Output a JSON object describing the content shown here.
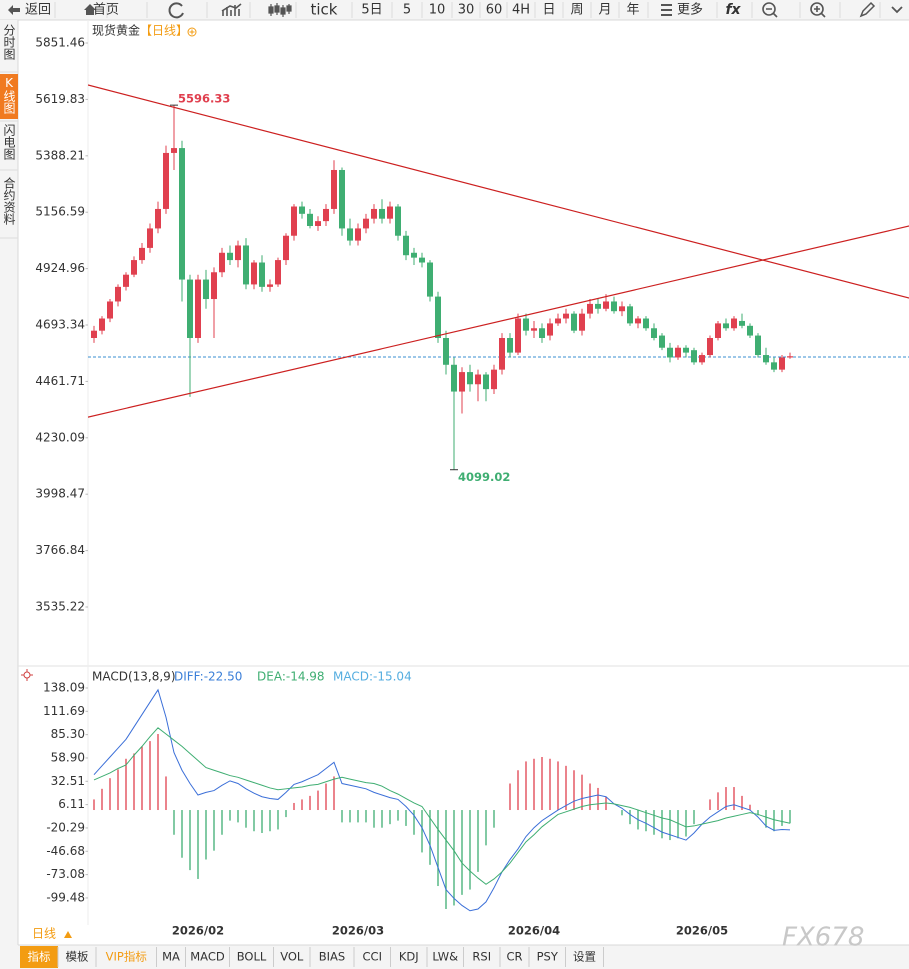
{
  "toolbar": [
    "返回",
    "首页",
    "tick",
    "5日",
    "5",
    "10",
    "30",
    "60",
    "4H",
    "日",
    "周",
    "月",
    "年",
    "更多",
    "fx"
  ],
  "side_tabs": [
    "分时图",
    "K线图",
    "闪电图",
    "合约资料"
  ],
  "period_selector": "日线",
  "bottom_tabs": [
    "指标",
    "模板",
    "VIP指标",
    "MA",
    "MACD",
    "BOLL",
    "VOL",
    "BIAS",
    "CCI",
    "KDJ",
    "LW&",
    "RSI",
    "CR",
    "PSY",
    "设置"
  ],
  "watermark": "FX678",
  "chart_data": [
    {
      "type": "candlestick",
      "title": "现货黄金",
      "period_label": "【日线】",
      "up_color": "#e0404f",
      "down_color": "#3fae72",
      "categories": [
        null,
        null,
        null,
        null,
        null,
        null,
        null,
        null,
        null,
        null,
        null,
        null,
        null,
        "2026/02",
        null,
        null,
        null,
        null,
        null,
        null,
        null,
        null,
        null,
        null,
        null,
        null,
        null,
        null,
        null,
        null,
        null,
        null,
        null,
        "2026/03",
        null,
        null,
        null,
        null,
        null,
        null,
        null,
        null,
        null,
        null,
        null,
        null,
        null,
        null,
        null,
        null,
        null,
        null,
        null,
        null,
        null,
        "2026/04",
        null,
        null,
        null,
        null,
        null,
        null,
        null,
        null,
        null,
        null,
        null,
        null,
        null,
        null,
        null,
        null,
        null,
        null,
        null,
        null,
        "2026/05",
        null,
        null,
        null,
        null,
        null,
        null,
        null,
        null,
        null,
        null,
        null
      ],
      "open": [
        4640,
        4670,
        4720,
        4790,
        4850,
        4900,
        4960,
        5010,
        5090,
        5170,
        5400,
        5420,
        4880,
        4640,
        4880,
        4800,
        4910,
        4990,
        4960,
        5020,
        4860,
        4950,
        4850,
        4860,
        4960,
        5060,
        5180,
        5150,
        5100,
        5120,
        5170,
        5330,
        5090,
        5040,
        5090,
        5130,
        5170,
        5130,
        5180,
        5060,
        4990,
        4970,
        4950,
        4810,
        4640,
        4530,
        4420,
        4500,
        4450,
        4490,
        4430,
        4510,
        4640,
        4580,
        4720,
        4670,
        4680,
        4650,
        4700,
        4720,
        4740,
        4670,
        4740,
        4780,
        4760,
        4790,
        4750,
        4770,
        4700,
        4720,
        4680,
        4650,
        4600,
        4560,
        4600,
        4590,
        4540,
        4570,
        4640,
        4700,
        4680,
        4710,
        4690,
        4650,
        4570,
        4540,
        4510,
        4560
      ],
      "high": [
        4690,
        4730,
        4800,
        4860,
        4910,
        4975,
        5030,
        5110,
        5200,
        5430,
        5596.33,
        5450,
        4900,
        4900,
        4920,
        4930,
        5010,
        5020,
        5040,
        5050,
        4960,
        4980,
        4880,
        4970,
        5070,
        5190,
        5200,
        5170,
        5140,
        5190,
        5370,
        5340,
        5130,
        5110,
        5150,
        5190,
        5210,
        5200,
        5190,
        5080,
        5010,
        4990,
        4960,
        4830,
        4670,
        4560,
        4520,
        4530,
        4510,
        4500,
        4530,
        4660,
        4660,
        4740,
        4740,
        4710,
        4700,
        4720,
        4740,
        4760,
        4750,
        4760,
        4800,
        4800,
        4820,
        4810,
        4790,
        4780,
        4730,
        4730,
        4700,
        4660,
        4620,
        4610,
        4610,
        4600,
        4580,
        4650,
        4710,
        4720,
        4730,
        4740,
        4700,
        4660,
        4600,
        4560,
        4570,
        4580
      ],
      "low": [
        4620,
        4655,
        4705,
        4770,
        4835,
        4890,
        4945,
        4990,
        5070,
        5150,
        5330,
        4790,
        4398,
        4620,
        4760,
        4640,
        4890,
        4940,
        4930,
        4840,
        4840,
        4830,
        4830,
        4850,
        4940,
        5040,
        5130,
        5090,
        5080,
        5100,
        5150,
        5060,
        5020,
        5020,
        5070,
        5110,
        5110,
        5110,
        5040,
        4960,
        4940,
        4930,
        4790,
        4620,
        4490,
        4099.02,
        4330,
        4420,
        4380,
        4380,
        4410,
        4490,
        4560,
        4570,
        4650,
        4640,
        4620,
        4630,
        4690,
        4700,
        4660,
        4650,
        4720,
        4740,
        4750,
        4740,
        4730,
        4690,
        4680,
        4670,
        4630,
        4590,
        4540,
        4550,
        4560,
        4530,
        4530,
        4560,
        4630,
        4670,
        4670,
        4680,
        4640,
        4560,
        4530,
        4500,
        4500,
        4555
      ],
      "close": [
        4670,
        4720,
        4790,
        4850,
        4900,
        4960,
        5010,
        5090,
        5170,
        5400,
        5420,
        4880,
        4640,
        4880,
        4800,
        4910,
        4990,
        4960,
        5020,
        4860,
        4950,
        4850,
        4860,
        4960,
        5060,
        5180,
        5150,
        5100,
        5120,
        5170,
        5330,
        5090,
        5040,
        5090,
        5130,
        5170,
        5130,
        5180,
        5060,
        4980,
        4970,
        4950,
        4810,
        4640,
        4530,
        4420,
        4500,
        4450,
        4490,
        4430,
        4510,
        4640,
        4580,
        4720,
        4670,
        4680,
        4640,
        4700,
        4720,
        4740,
        4670,
        4740,
        4780,
        4760,
        4790,
        4750,
        4770,
        4700,
        4720,
        4680,
        4640,
        4600,
        4560,
        4600,
        4580,
        4540,
        4570,
        4640,
        4700,
        4680,
        4720,
        4690,
        4650,
        4570,
        4540,
        4510,
        4560,
        4565
      ],
      "ylim": [
        3297,
        5946
      ],
      "yticks": [
        5851.46,
        5619.83,
        5388.21,
        5156.59,
        4924.96,
        4693.34,
        4461.71,
        4230.09,
        3998.47,
        3766.84,
        3535.22
      ],
      "annotations": [
        {
          "label": "5596.33",
          "x": 10,
          "value": 5596.33,
          "color": "#e0404f"
        },
        {
          "label": "4099.02",
          "x": 45,
          "value": 4099.02,
          "color": "#3fae72"
        }
      ],
      "trend_lines": [
        {
          "color": "#cc2020",
          "x": [
            -0.75,
            101.9
          ],
          "values": [
            5679,
            4804
          ]
        },
        {
          "color": "#cc2020",
          "x": [
            -0.75,
            101.9
          ],
          "values": [
            4315,
            5100
          ]
        }
      ],
      "reference_line": {
        "value": 4562,
        "color": "#3a8fd0"
      }
    },
    {
      "type": "macd",
      "title": "MACD(13,8,9)",
      "readouts": [
        {
          "text": "DIFF:-22.50",
          "color": "#3b7fd8"
        },
        {
          "text": "DEA:-14.98",
          "color": "#3fae72"
        },
        {
          "text": "MACD:-15.04",
          "color": "#56aee0"
        }
      ],
      "diff_color": "#3b6fd8",
      "dea_color": "#3fae72",
      "up_color": "#e0404f",
      "down_color": "#3fae72",
      "diff": [
        40,
        50,
        60,
        70,
        80,
        94,
        108,
        122,
        136,
        105,
        65,
        45,
        30,
        17,
        20,
        22,
        28,
        33,
        30,
        24,
        19,
        15,
        13,
        12,
        20,
        29,
        32,
        36,
        40,
        47,
        54,
        30,
        28,
        26,
        24,
        20,
        17,
        14,
        12,
        4,
        -6,
        -20,
        -40,
        -65,
        -90,
        -100,
        -108,
        -114,
        -112,
        -104,
        -88,
        -70,
        -56,
        -44,
        -30,
        -20,
        -12,
        -6,
        0,
        5,
        10,
        13,
        15,
        17,
        15,
        7,
        2,
        -5,
        -11,
        -15,
        -20,
        -25,
        -28,
        -31,
        -34,
        -26,
        -16,
        -8,
        -2,
        4,
        6,
        3,
        0,
        -8,
        -18,
        -23,
        -22,
        -22.5
      ],
      "dea": [
        34,
        38,
        42,
        47,
        51,
        62,
        72,
        83,
        93,
        86,
        79,
        72,
        64,
        56,
        48,
        45,
        42,
        39,
        37,
        34,
        31,
        28,
        25,
        23,
        24,
        25,
        26,
        28,
        29,
        32,
        35,
        37,
        35,
        33,
        31,
        30,
        27,
        22,
        18,
        13,
        8,
        4,
        -9,
        -22,
        -34,
        -46,
        -60,
        -69,
        -77,
        -84,
        -78,
        -70,
        -60,
        -48,
        -36,
        -28,
        -19,
        -12,
        -5,
        -2,
        1,
        4,
        6,
        7,
        8,
        7,
        5,
        3,
        0,
        -3,
        -6,
        -9,
        -11,
        -15,
        -19,
        -18,
        -16,
        -14,
        -12,
        -9,
        -7,
        -5,
        -3,
        -5,
        -8,
        -11,
        -13,
        -14.98
      ],
      "macd": [
        12,
        24,
        36,
        46,
        58,
        64,
        72,
        78,
        86,
        38,
        -28,
        -54,
        -68,
        -78,
        -56,
        -46,
        -28,
        -12,
        -14,
        -20,
        -24,
        -26,
        -24,
        -22,
        -8,
        8,
        12,
        16,
        22,
        30,
        38,
        -14,
        -14,
        -14,
        -14,
        -20,
        -20,
        -16,
        -12,
        -18,
        -28,
        -48,
        -62,
        -86,
        -112,
        -108,
        -96,
        -90,
        -70,
        -40,
        -20,
        0,
        30,
        45,
        55,
        58,
        60,
        58,
        55,
        50,
        45,
        40,
        30,
        25,
        15,
        0,
        -6,
        -16,
        -22,
        -24,
        -28,
        -32,
        -34,
        -32,
        -30,
        -16,
        0,
        12,
        20,
        26,
        26,
        16,
        6,
        -6,
        -20,
        -24,
        -18,
        -15.04
      ],
      "ylim": [
        -130.1,
        160.7
      ],
      "yticks": [
        138.09,
        111.69,
        {
          "value": 85.3,
          "label": "85.30"
        },
        {
          "value": 58.9,
          "label": "58.90"
        },
        32.51,
        6.11,
        -20.29,
        -46.68,
        -73.08,
        -99.48
      ]
    }
  ]
}
